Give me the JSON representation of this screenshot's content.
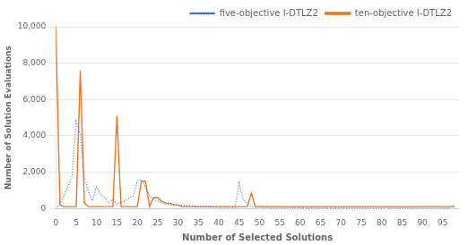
{
  "chart_data": {
    "type": "line",
    "xlabel": "Number of Selected Solutions",
    "ylabel": "Number of Solution Evaluations",
    "x": [
      0,
      1,
      2,
      3,
      4,
      5,
      6,
      7,
      8,
      9,
      10,
      11,
      12,
      13,
      14,
      15,
      16,
      17,
      18,
      19,
      20,
      21,
      22,
      23,
      24,
      25,
      26,
      27,
      28,
      29,
      30,
      31,
      32,
      33,
      34,
      35,
      36,
      37,
      38,
      39,
      40,
      41,
      42,
      43,
      44,
      45,
      46,
      47,
      48,
      49,
      50,
      51,
      52,
      53,
      54,
      55,
      56,
      57,
      58,
      59,
      60,
      61,
      62,
      63,
      64,
      65,
      66,
      67,
      68,
      69,
      70,
      71,
      72,
      73,
      74,
      75,
      76,
      77,
      78,
      79,
      80,
      81,
      82,
      83,
      84,
      85,
      86,
      87,
      88,
      89,
      90,
      91,
      92,
      93,
      94,
      95,
      96,
      97,
      98
    ],
    "xlim": [
      0,
      99
    ],
    "ylim": [
      0,
      10000
    ],
    "xticks": [
      0,
      5,
      10,
      15,
      20,
      25,
      30,
      35,
      40,
      45,
      50,
      55,
      60,
      65,
      70,
      75,
      80,
      85,
      90,
      95
    ],
    "yticks": [
      0,
      2000,
      4000,
      6000,
      8000,
      10000
    ],
    "grid": true,
    "legend": "upper right",
    "series": [
      {
        "name": "five-objective I-DTLZ2",
        "color": "#4472C4",
        "line_style": "dotted",
        "values": [
          0,
          300,
          700,
          1200,
          1800,
          4800,
          4100,
          1800,
          900,
          400,
          1200,
          800,
          600,
          300,
          500,
          250,
          350,
          400,
          600,
          700,
          1500,
          1600,
          1200,
          700,
          500,
          400,
          300,
          250,
          200,
          180,
          200,
          150,
          180,
          160,
          140,
          100,
          120,
          80,
          100,
          80,
          70,
          60,
          80,
          70,
          60,
          1400,
          500,
          300,
          100,
          80,
          100,
          70,
          80,
          50,
          70,
          60,
          50,
          60,
          40,
          50,
          40,
          30,
          40,
          30,
          20,
          20,
          25,
          20,
          20,
          30,
          20,
          30,
          20,
          25,
          20,
          30,
          20,
          15,
          20,
          15,
          20,
          100,
          20,
          20,
          30,
          20,
          30,
          20,
          20,
          20,
          15,
          20,
          15,
          20,
          15,
          20,
          20,
          100,
          200
        ]
      },
      {
        "name": "ten-objective I-DTLZ2",
        "color": "#E87722",
        "line_style": "solid",
        "values": [
          10000,
          200,
          100,
          100,
          100,
          100,
          7600,
          300,
          100,
          100,
          100,
          100,
          100,
          100,
          100,
          5100,
          100,
          100,
          100,
          100,
          100,
          1500,
          1500,
          100,
          600,
          600,
          400,
          300,
          300,
          200,
          200,
          100,
          100,
          100,
          100,
          100,
          100,
          100,
          100,
          100,
          100,
          100,
          100,
          100,
          100,
          100,
          100,
          100,
          850,
          100,
          100,
          100,
          100,
          100,
          100,
          100,
          100,
          100,
          100,
          100,
          100,
          100,
          100,
          100,
          100,
          100,
          100,
          100,
          100,
          100,
          100,
          100,
          100,
          100,
          100,
          100,
          100,
          100,
          100,
          100,
          100,
          100,
          100,
          100,
          100,
          100,
          100,
          100,
          100,
          100,
          100,
          100,
          100,
          100,
          100,
          100,
          100,
          100,
          100
        ]
      }
    ]
  }
}
